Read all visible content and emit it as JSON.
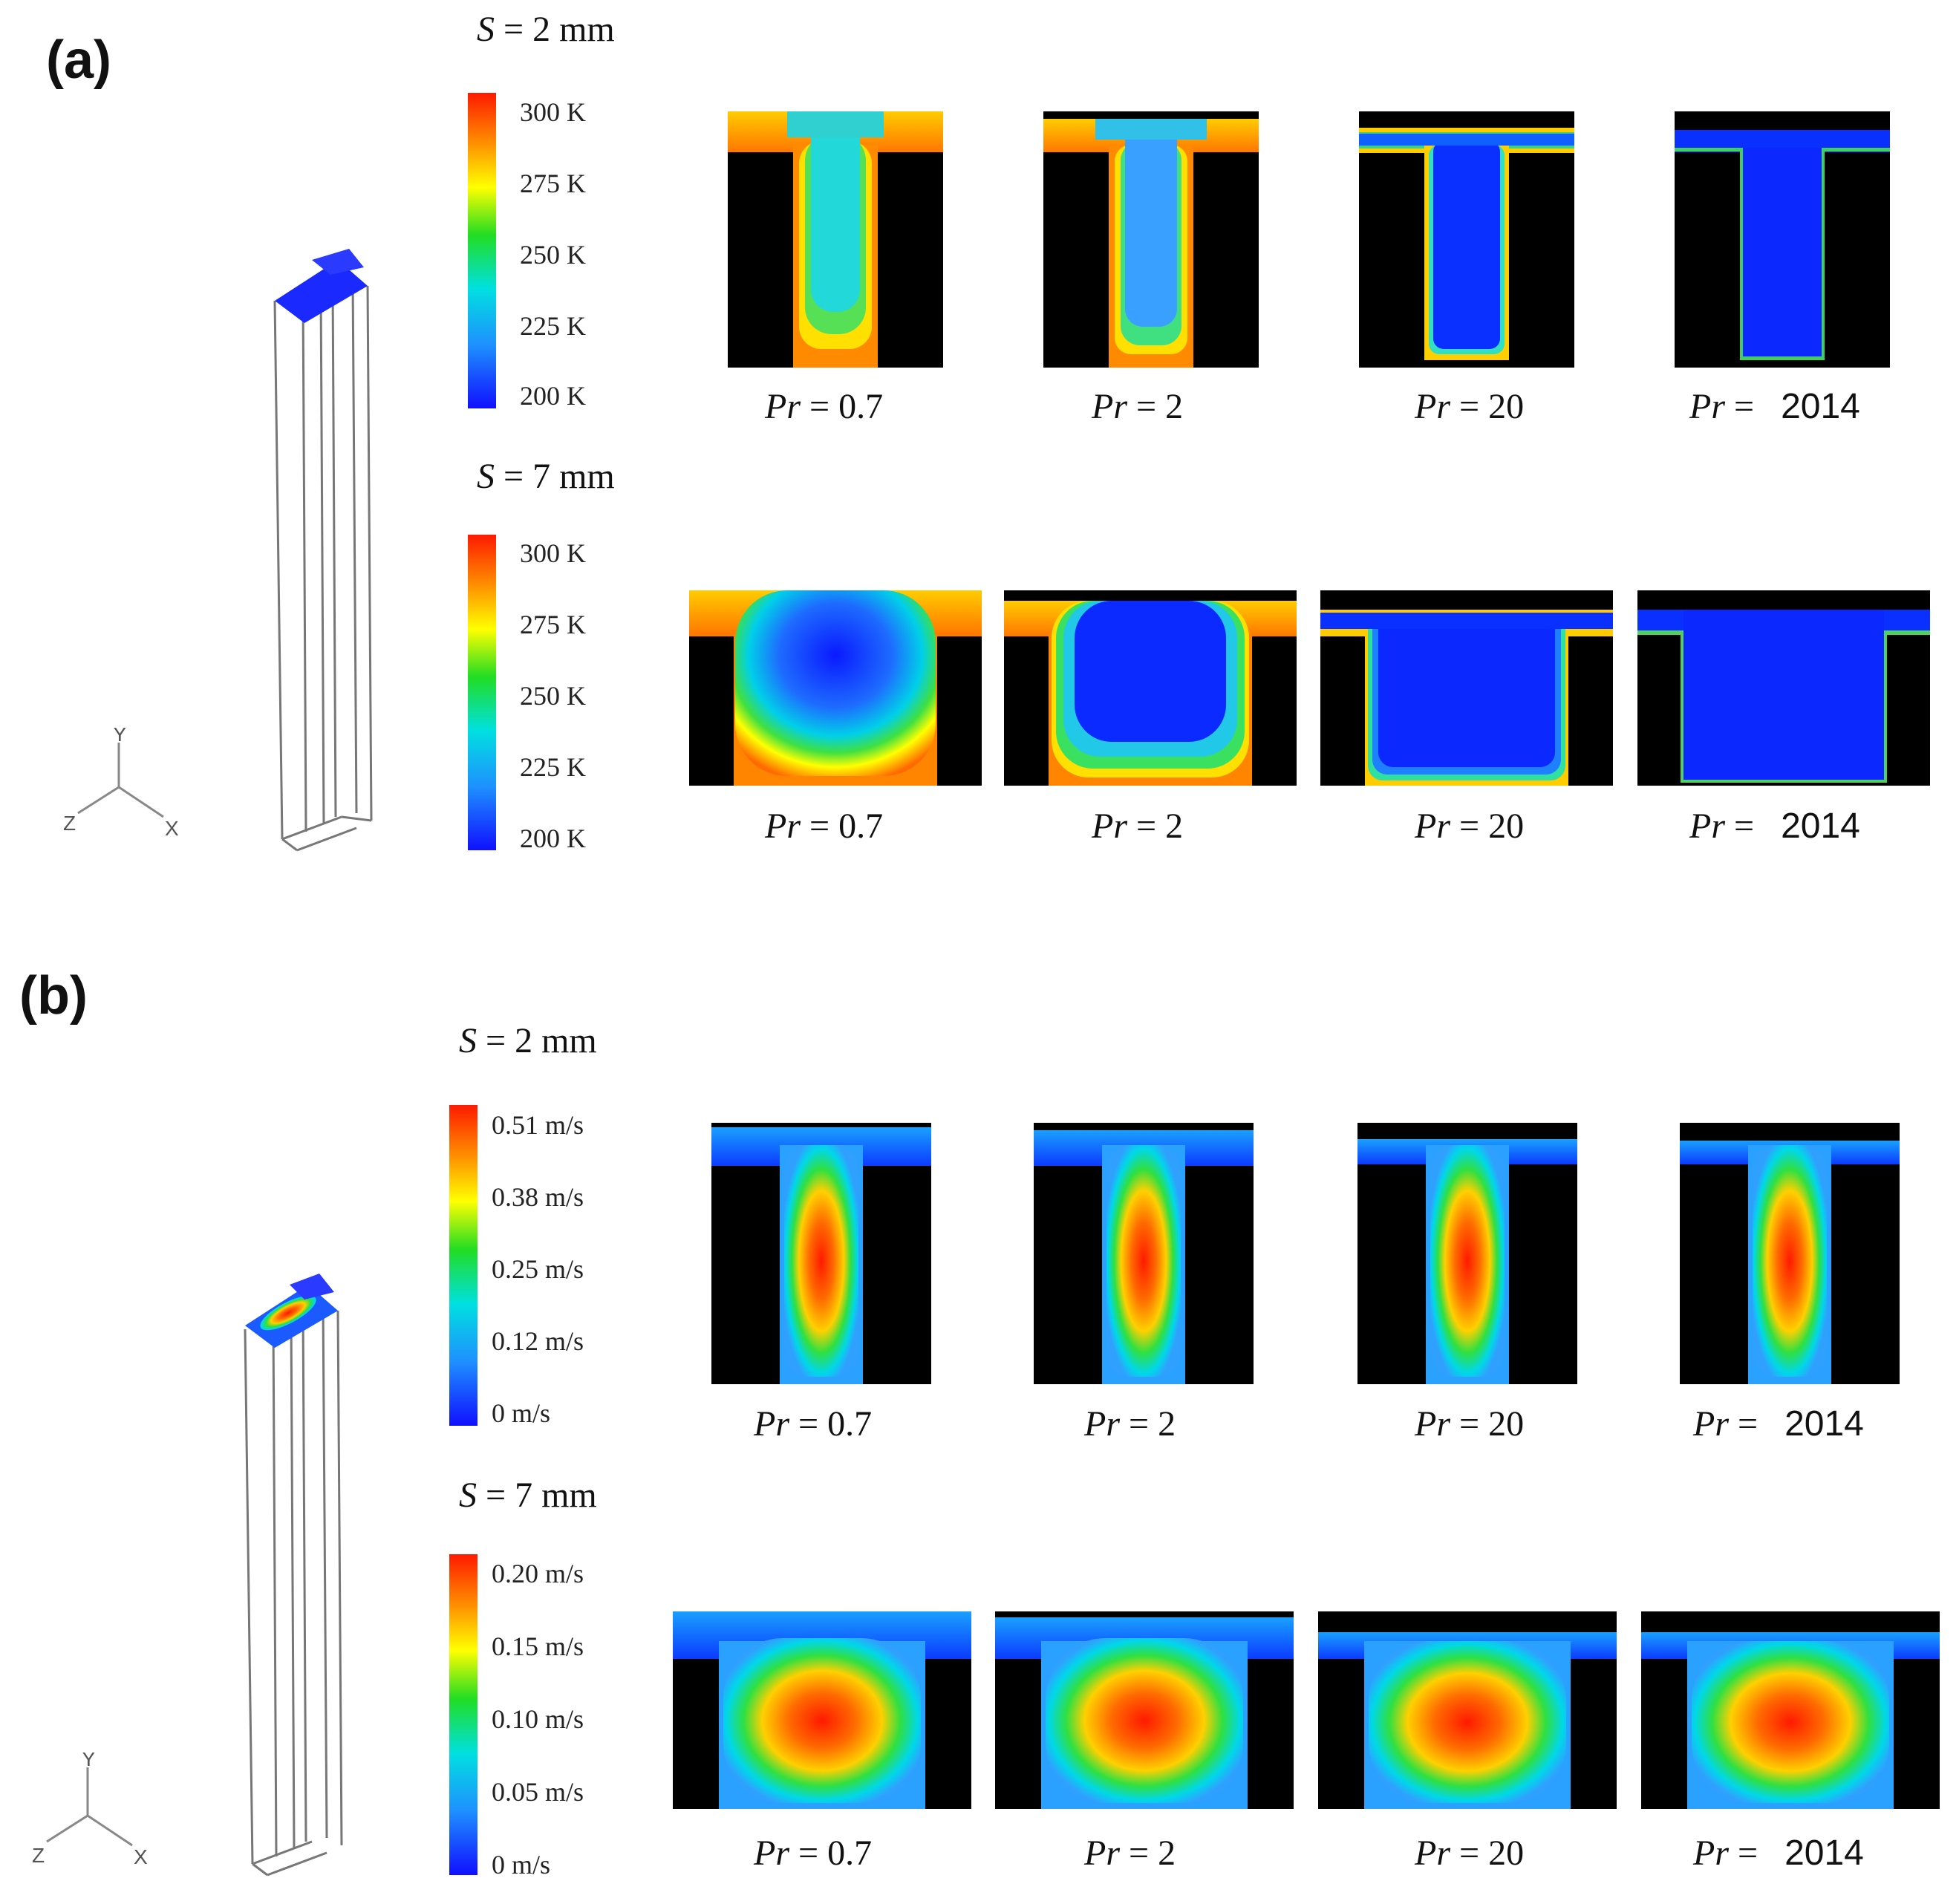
{
  "figure": {
    "panels": [
      {
        "label": "(a)",
        "quantity": "temperature",
        "rows": [
          {
            "s_symbol": "S",
            "s_value": "= 2 mm",
            "colorbar_ticks": [
              "300 K",
              "275 K",
              "250 K",
              "225 K",
              "200 K"
            ],
            "captions": [
              {
                "pr": "Pr",
                "value": "= 0.7",
                "num": ""
              },
              {
                "pr": "Pr",
                "value": "= 2",
                "num": ""
              },
              {
                "pr": "Pr",
                "value": "= 20",
                "num": ""
              },
              {
                "pr": "Pr",
                "value": "=",
                "num": "2014"
              }
            ]
          },
          {
            "s_symbol": "S",
            "s_value": "= 7 mm",
            "colorbar_ticks": [
              "300 K",
              "275 K",
              "250 K",
              "225 K",
              "200 K"
            ],
            "captions": [
              {
                "pr": "Pr",
                "value": "= 0.7",
                "num": ""
              },
              {
                "pr": "Pr",
                "value": "= 2",
                "num": ""
              },
              {
                "pr": "Pr",
                "value": "= 20",
                "num": ""
              },
              {
                "pr": "Pr",
                "value": "=",
                "num": "2014"
              }
            ]
          }
        ]
      },
      {
        "label": "(b)",
        "quantity": "velocity",
        "rows": [
          {
            "s_symbol": "S",
            "s_value": "= 2 mm",
            "colorbar_ticks": [
              "0.51 m/s",
              "0.38 m/s",
              "0.25 m/s",
              "0.12 m/s",
              "0 m/s"
            ],
            "captions": [
              {
                "pr": "Pr",
                "value": "= 0.7",
                "num": ""
              },
              {
                "pr": "Pr",
                "value": "= 2",
                "num": ""
              },
              {
                "pr": "Pr",
                "value": "= 20",
                "num": ""
              },
              {
                "pr": "Pr",
                "value": "=",
                "num": "2014"
              }
            ]
          },
          {
            "s_symbol": "S",
            "s_value": "= 7 mm",
            "colorbar_ticks": [
              "0.20 m/s",
              "0.15 m/s",
              "0.10 m/s",
              "0.05 m/s",
              "0 m/s"
            ],
            "captions": [
              {
                "pr": "Pr",
                "value": "= 0.7",
                "num": ""
              },
              {
                "pr": "Pr",
                "value": "= 2",
                "num": ""
              },
              {
                "pr": "Pr",
                "value": "= 20",
                "num": ""
              },
              {
                "pr": "Pr",
                "value": "=",
                "num": "2014"
              }
            ]
          }
        ]
      }
    ],
    "axes_labels": {
      "y": "Y",
      "z": "Z",
      "x": "X"
    },
    "colormap": [
      "#0000ff",
      "#00bfff",
      "#00ff80",
      "#ffff00",
      "#ff7f00",
      "#ff0000"
    ]
  }
}
